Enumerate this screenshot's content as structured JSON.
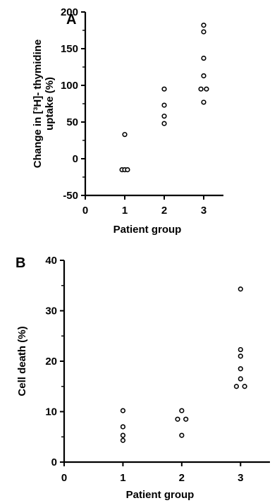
{
  "chart_data": [
    {
      "panel": "A",
      "type": "scatter",
      "xlabel": "Patient group",
      "ylabel_lines": [
        "Change in [³H]- thymidine",
        "uptake (%)"
      ],
      "xlim": [
        0,
        3.5
      ],
      "ylim": [
        -50,
        200
      ],
      "xticks": [
        0,
        1,
        2,
        3
      ],
      "yticks": [
        -50,
        0,
        50,
        100,
        150,
        200
      ],
      "grid": false,
      "points": [
        {
          "x": 0.93,
          "y": -15
        },
        {
          "x": 1.0,
          "y": -15
        },
        {
          "x": 1.07,
          "y": -15
        },
        {
          "x": 1.0,
          "y": 33
        },
        {
          "x": 2.0,
          "y": 48
        },
        {
          "x": 2.0,
          "y": 58
        },
        {
          "x": 2.0,
          "y": 73
        },
        {
          "x": 2.0,
          "y": 95
        },
        {
          "x": 3.0,
          "y": 77
        },
        {
          "x": 2.93,
          "y": 95
        },
        {
          "x": 3.07,
          "y": 95
        },
        {
          "x": 3.0,
          "y": 113
        },
        {
          "x": 3.0,
          "y": 137
        },
        {
          "x": 3.0,
          "y": 173
        },
        {
          "x": 3.0,
          "y": 182
        }
      ]
    },
    {
      "panel": "B",
      "type": "scatter",
      "xlabel": "Patient group",
      "ylabel_lines": [
        "Cell death (%)"
      ],
      "xlim": [
        0,
        3.5
      ],
      "ylim": [
        0,
        40
      ],
      "xticks": [
        0,
        1,
        2,
        3
      ],
      "yticks": [
        0,
        10,
        20,
        30,
        40
      ],
      "grid": false,
      "points": [
        {
          "x": 1.0,
          "y": 4.3
        },
        {
          "x": 1.0,
          "y": 5.3
        },
        {
          "x": 1.0,
          "y": 7.0
        },
        {
          "x": 1.0,
          "y": 10.2
        },
        {
          "x": 2.0,
          "y": 5.3
        },
        {
          "x": 1.93,
          "y": 8.5
        },
        {
          "x": 2.07,
          "y": 8.5
        },
        {
          "x": 2.0,
          "y": 10.2
        },
        {
          "x": 2.93,
          "y": 15.0
        },
        {
          "x": 3.07,
          "y": 15.0
        },
        {
          "x": 3.0,
          "y": 16.5
        },
        {
          "x": 3.0,
          "y": 18.5
        },
        {
          "x": 3.0,
          "y": 21.0
        },
        {
          "x": 3.0,
          "y": 22.3
        },
        {
          "x": 3.0,
          "y": 34.3
        }
      ]
    }
  ]
}
